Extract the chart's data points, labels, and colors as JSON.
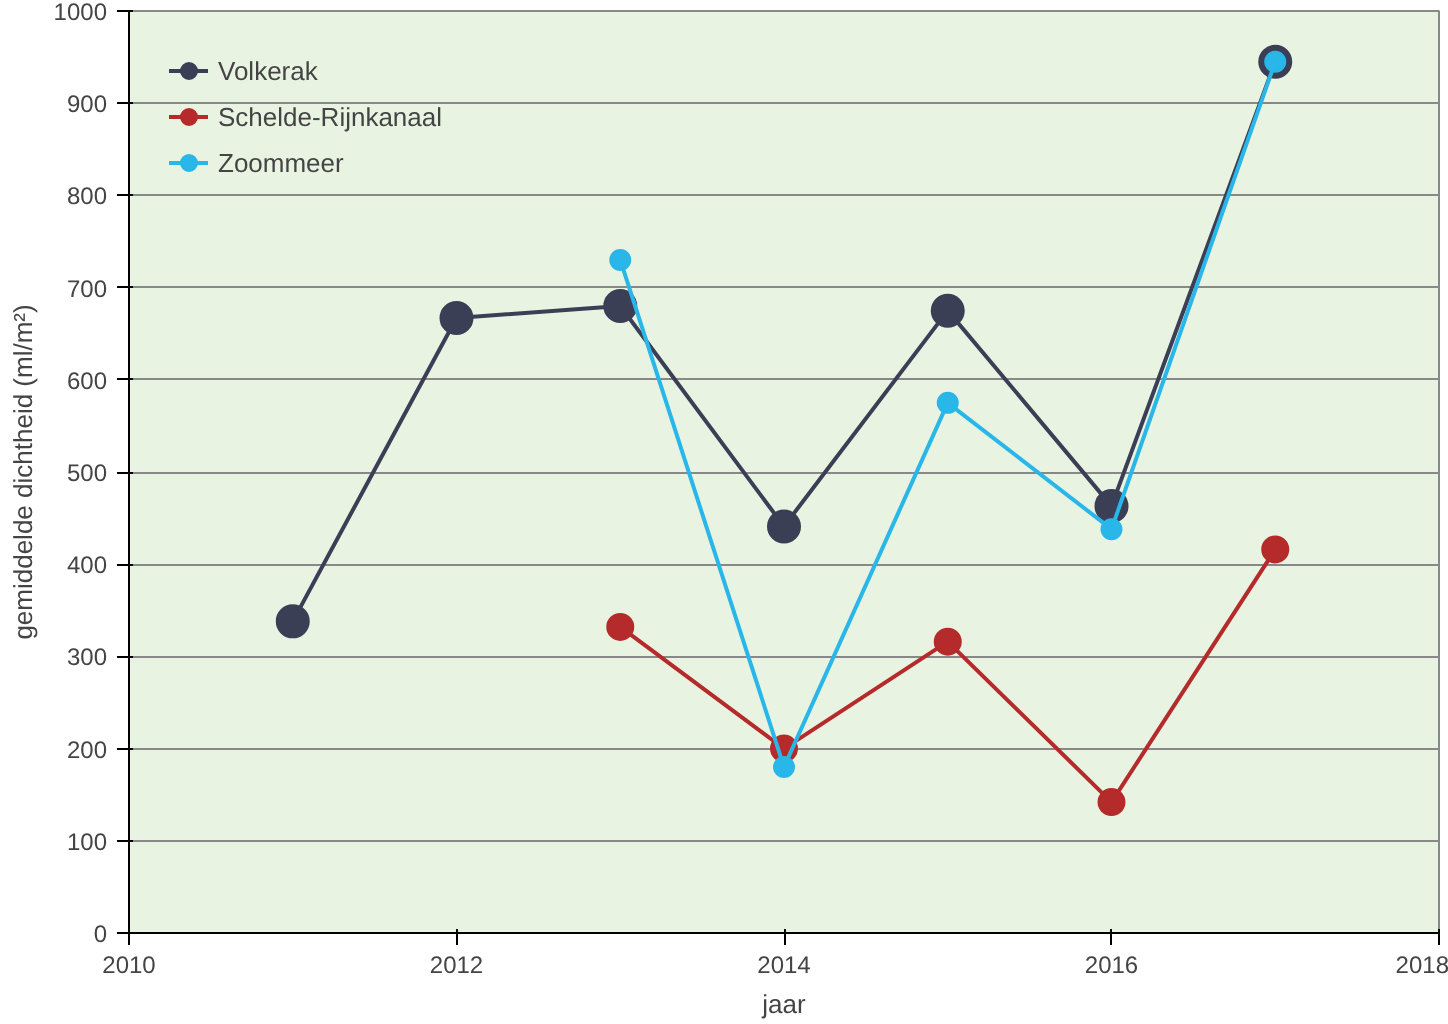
{
  "chart_data": {
    "type": "line",
    "xlabel": "jaar",
    "ylabel": "gemiddelde dichtheid (ml/m²)",
    "series": [
      {
        "name": "Volkerak",
        "color": "#3b3f55",
        "x": [
          2011,
          2012,
          2013,
          2014,
          2015,
          2016,
          2017
        ],
        "values": [
          338,
          667,
          680,
          441,
          675,
          463,
          945
        ]
      },
      {
        "name": "Schelde-Rijnkanaal",
        "color": "#b52a2a",
        "x": [
          2013,
          2014,
          2015,
          2016,
          2017
        ],
        "values": [
          332,
          200,
          316,
          142,
          416
        ]
      },
      {
        "name": "Zoommeer",
        "color": "#29b6e8",
        "x": [
          2013,
          2014,
          2015,
          2016,
          2017
        ],
        "values": [
          730,
          180,
          575,
          438,
          945
        ]
      }
    ],
    "xlim": [
      2010,
      2018
    ],
    "xticks": [
      2010,
      2012,
      2014,
      2016,
      2018
    ],
    "ylim": [
      0,
      1000
    ],
    "yticks": [
      0,
      100,
      200,
      300,
      400,
      500,
      600,
      700,
      800,
      900,
      1000
    ],
    "grid": "y",
    "legend": "top left",
    "marker": "circle",
    "line_style": "solid"
  }
}
